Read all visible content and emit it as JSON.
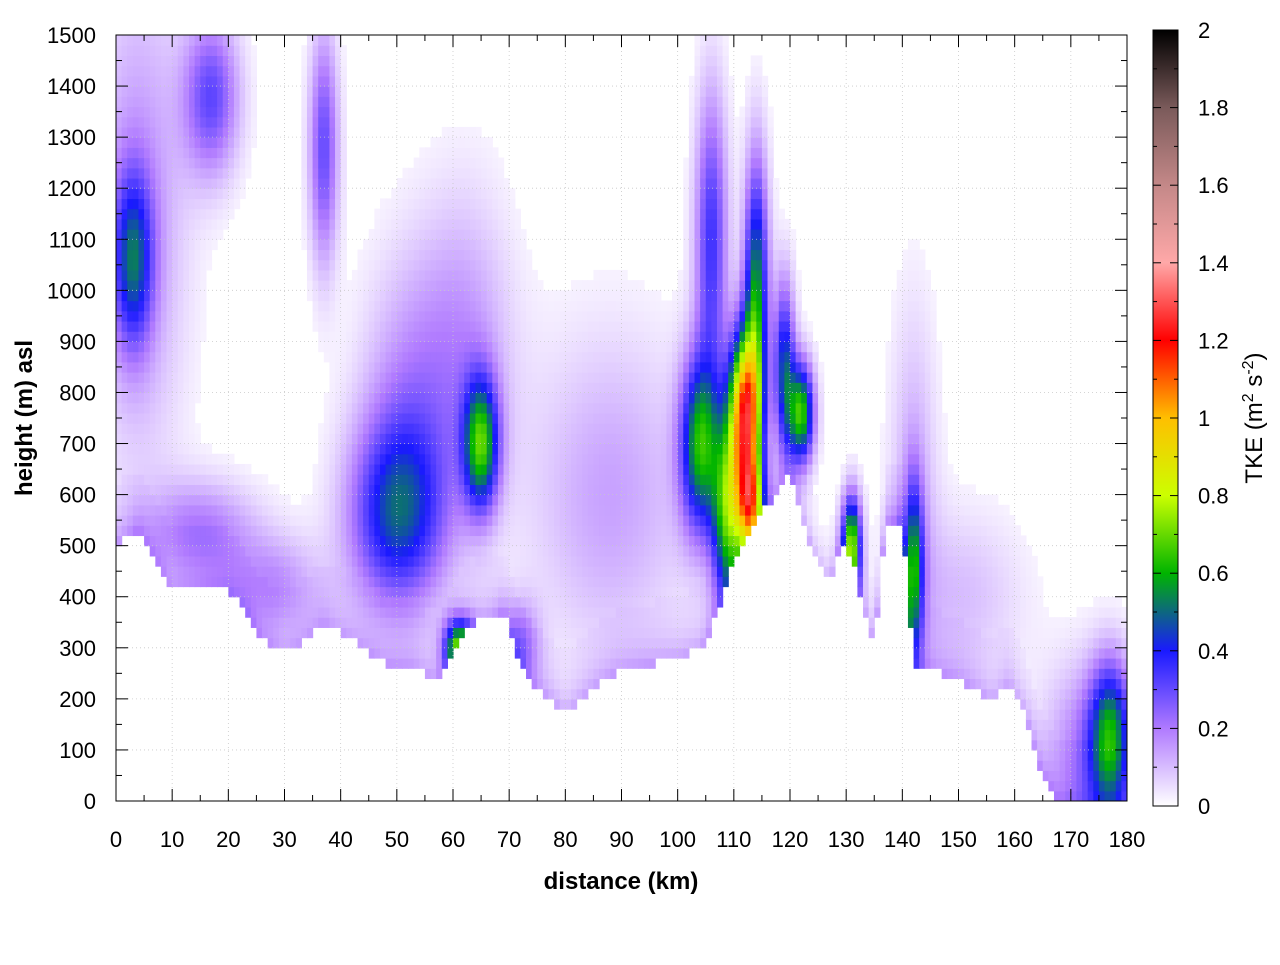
{
  "chart_data": {
    "type": "heatmap",
    "title": "",
    "xlabel": "distance (km)",
    "ylabel": "height (m) asl",
    "xlim": [
      0,
      180
    ],
    "ylim": [
      0,
      1500
    ],
    "x_ticks": [
      "0",
      "10",
      "20",
      "30",
      "40",
      "50",
      "60",
      "70",
      "80",
      "90",
      "100",
      "110",
      "120",
      "130",
      "140",
      "150",
      "160",
      "170",
      "180"
    ],
    "y_ticks": [
      "0",
      "100",
      "200",
      "300",
      "400",
      "500",
      "600",
      "700",
      "800",
      "900",
      "1000",
      "1100",
      "1200",
      "1300",
      "1400",
      "1500"
    ],
    "grid": true,
    "colorbar": {
      "label_main": "TKE (m",
      "label_sup1": "2",
      "label_mid": " s",
      "label_sup2": "-2",
      "label_end": ")",
      "range": [
        0,
        2
      ],
      "ticks": [
        "0",
        "0.2",
        "0.4",
        "0.6",
        "0.8",
        "1",
        "1.2",
        "1.4",
        "1.6",
        "1.8",
        "2"
      ],
      "stops": [
        {
          "v": 0.0,
          "color": "#ffffff"
        },
        {
          "v": 0.2,
          "color": "#b07aff"
        },
        {
          "v": 0.4,
          "color": "#1a1aff"
        },
        {
          "v": 0.6,
          "color": "#00b400"
        },
        {
          "v": 0.8,
          "color": "#ccff00"
        },
        {
          "v": 1.0,
          "color": "#ffbf00"
        },
        {
          "v": 1.2,
          "color": "#ff0000"
        },
        {
          "v": 1.4,
          "color": "#ffa8a8"
        },
        {
          "v": 1.6,
          "color": "#c48888"
        },
        {
          "v": 1.8,
          "color": "#7a5a5a"
        },
        {
          "v": 2.0,
          "color": "#000000"
        }
      ]
    },
    "terrain_km_m": [
      [
        0,
        500
      ],
      [
        4,
        530
      ],
      [
        7,
        470
      ],
      [
        10,
        410
      ],
      [
        13,
        415
      ],
      [
        17,
        420
      ],
      [
        20,
        415
      ],
      [
        23,
        380
      ],
      [
        26,
        320
      ],
      [
        30,
        290
      ],
      [
        33,
        310
      ],
      [
        37,
        350
      ],
      [
        40,
        330
      ],
      [
        44,
        300
      ],
      [
        48,
        270
      ],
      [
        53,
        265
      ],
      [
        57,
        240
      ],
      [
        60,
        280
      ],
      [
        63,
        345
      ],
      [
        66,
        360
      ],
      [
        69,
        370
      ],
      [
        71,
        300
      ],
      [
        74,
        235
      ],
      [
        78,
        195
      ],
      [
        80,
        170
      ],
      [
        82,
        190
      ],
      [
        85,
        220
      ],
      [
        89,
        250
      ],
      [
        94,
        265
      ],
      [
        100,
        280
      ],
      [
        104,
        300
      ],
      [
        106,
        340
      ],
      [
        108,
        400
      ],
      [
        110,
        480
      ],
      [
        113,
        540
      ],
      [
        116,
        580
      ],
      [
        118,
        610
      ],
      [
        120,
        640
      ],
      [
        122,
        560
      ],
      [
        125,
        460
      ],
      [
        127,
        430
      ],
      [
        129,
        500
      ],
      [
        131,
        480
      ],
      [
        133,
        380
      ],
      [
        135,
        310
      ],
      [
        137,
        550
      ],
      [
        140,
        550
      ],
      [
        142,
        270
      ],
      [
        145,
        255
      ],
      [
        150,
        240
      ],
      [
        153,
        220
      ],
      [
        156,
        195
      ],
      [
        159,
        230
      ],
      [
        162,
        165
      ],
      [
        165,
        50
      ],
      [
        168,
        0
      ],
      [
        180,
        0
      ]
    ],
    "blobs": [
      {
        "x": 3,
        "y": 1060,
        "sx": 2.5,
        "sy": 120,
        "v": 0.38
      },
      {
        "x": 4,
        "y": 1150,
        "sx": 6,
        "sy": 350,
        "v": 0.16
      },
      {
        "x": 17,
        "y": 1380,
        "sx": 3.5,
        "sy": 110,
        "v": 0.3
      },
      {
        "x": 37,
        "y": 1280,
        "sx": 1.8,
        "sy": 160,
        "v": 0.3
      },
      {
        "x": 15,
        "y": 530,
        "sx": 7,
        "sy": 70,
        "v": 0.2
      },
      {
        "x": 28,
        "y": 420,
        "sx": 6,
        "sy": 70,
        "v": 0.17
      },
      {
        "x": 50,
        "y": 560,
        "sx": 6,
        "sy": 130,
        "v": 0.42
      },
      {
        "x": 52,
        "y": 780,
        "sx": 6,
        "sy": 200,
        "v": 0.15
      },
      {
        "x": 62,
        "y": 880,
        "sx": 6,
        "sy": 220,
        "v": 0.15
      },
      {
        "x": 65,
        "y": 700,
        "sx": 2.2,
        "sy": 90,
        "v": 0.58
      },
      {
        "x": 61,
        "y": 300,
        "sx": 1.8,
        "sy": 40,
        "v": 0.62
      },
      {
        "x": 72,
        "y": 310,
        "sx": 2.5,
        "sy": 60,
        "v": 0.2
      },
      {
        "x": 104,
        "y": 700,
        "sx": 2.5,
        "sy": 120,
        "v": 0.58
      },
      {
        "x": 106,
        "y": 1100,
        "sx": 2,
        "sy": 200,
        "v": 0.35
      },
      {
        "x": 109,
        "y": 560,
        "sx": 2,
        "sy": 120,
        "v": 0.62
      },
      {
        "x": 112,
        "y": 760,
        "sx": 2,
        "sy": 110,
        "v": 1.1
      },
      {
        "x": 114,
        "y": 1000,
        "sx": 1.5,
        "sy": 180,
        "v": 0.55
      },
      {
        "x": 113,
        "y": 580,
        "sx": 1.6,
        "sy": 70,
        "v": 0.8
      },
      {
        "x": 119,
        "y": 850,
        "sx": 1.3,
        "sy": 120,
        "v": 0.45
      },
      {
        "x": 122,
        "y": 760,
        "sx": 1.6,
        "sy": 70,
        "v": 0.65
      },
      {
        "x": 131,
        "y": 500,
        "sx": 1.2,
        "sy": 70,
        "v": 0.7
      },
      {
        "x": 142,
        "y": 450,
        "sx": 1.2,
        "sy": 120,
        "v": 0.5
      },
      {
        "x": 142,
        "y": 620,
        "sx": 3,
        "sy": 250,
        "v": 0.12
      },
      {
        "x": 88,
        "y": 600,
        "sx": 10,
        "sy": 220,
        "v": 0.14
      },
      {
        "x": 150,
        "y": 400,
        "sx": 8,
        "sy": 120,
        "v": 0.1
      },
      {
        "x": 177,
        "y": 130,
        "sx": 2.5,
        "sy": 100,
        "v": 0.45
      },
      {
        "x": 174,
        "y": 100,
        "sx": 6,
        "sy": 120,
        "v": 0.22
      }
    ]
  }
}
